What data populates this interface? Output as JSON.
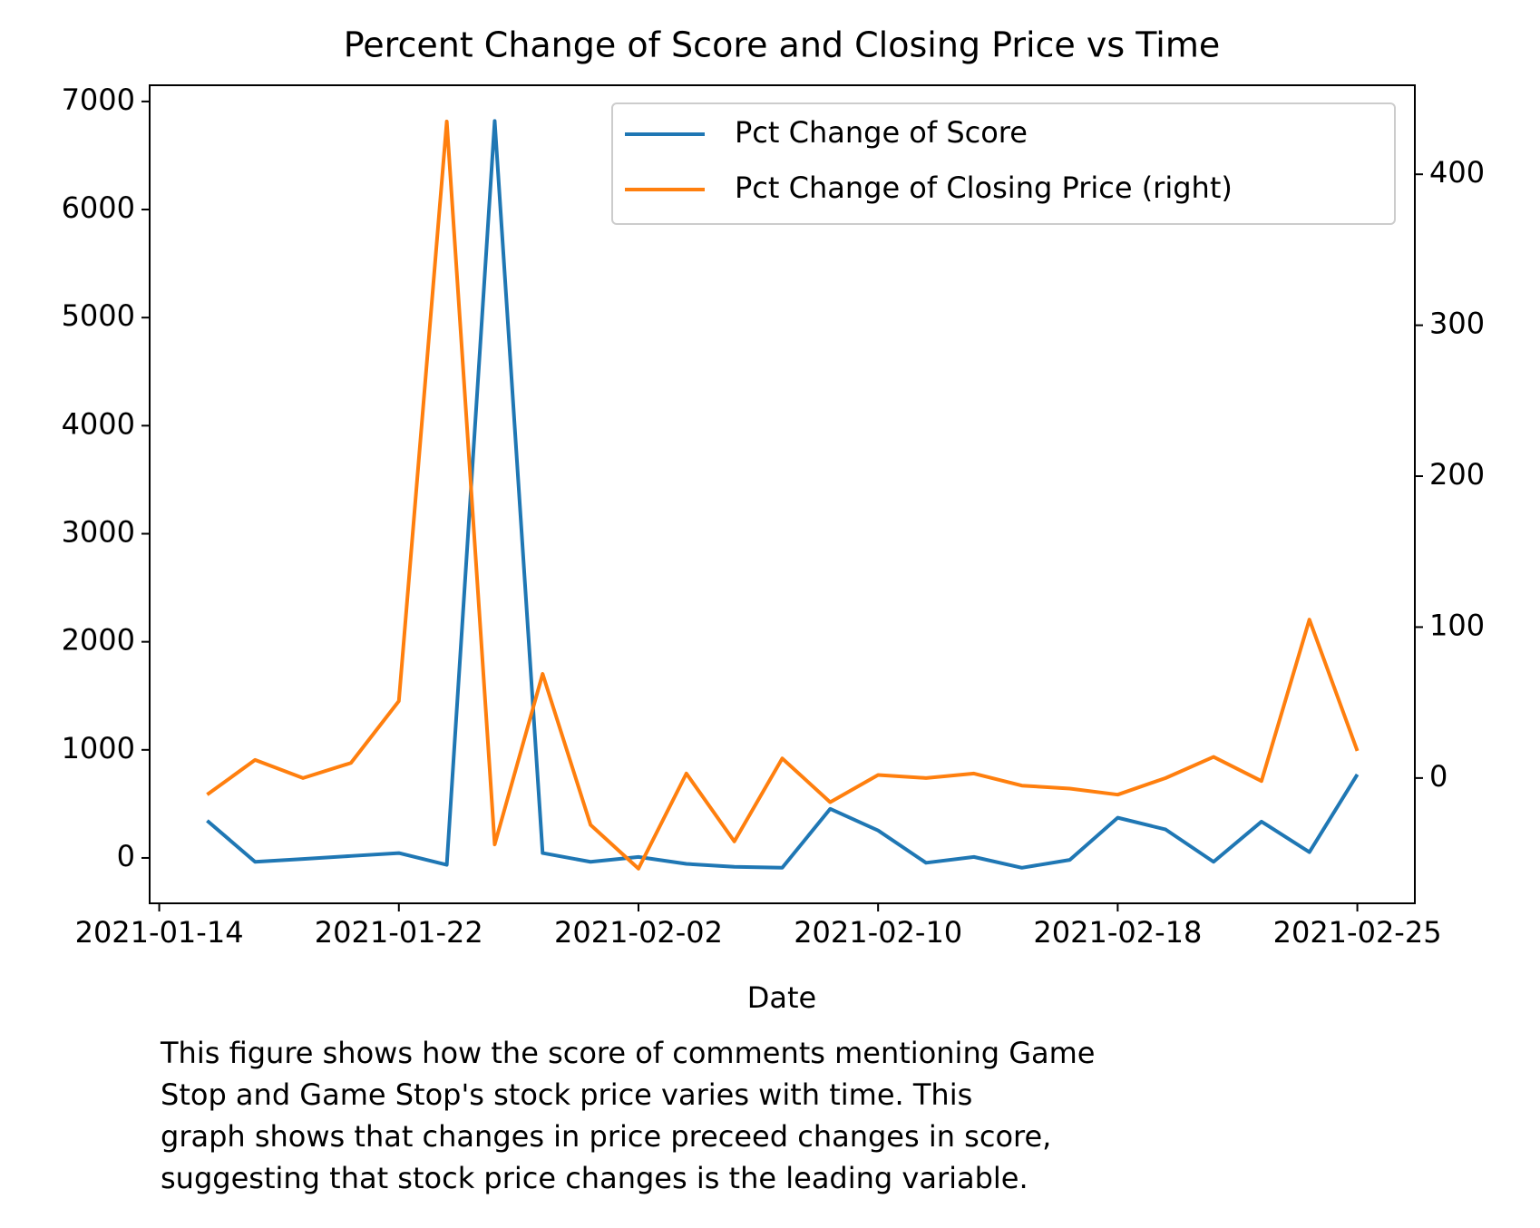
{
  "chart_data": {
    "type": "line",
    "title": "Percent Change of Score and Closing Price vs Time",
    "xlabel": "Date",
    "x": [
      1,
      2,
      3,
      4,
      5,
      6,
      7,
      8,
      9,
      10,
      11,
      12,
      13,
      14,
      15,
      16,
      17,
      18,
      19,
      20,
      21,
      22,
      23,
      24,
      25
    ],
    "xlim": [
      -0.2,
      26.2
    ],
    "xticks": [
      {
        "value": 0,
        "label": "2021-01-14"
      },
      {
        "value": 5,
        "label": "2021-01-22"
      },
      {
        "value": 10,
        "label": "2021-02-02"
      },
      {
        "value": 15,
        "label": "2021-02-10"
      },
      {
        "value": 20,
        "label": "2021-02-18"
      },
      {
        "value": 25,
        "label": "2021-02-25"
      }
    ],
    "ylim": [
      -420,
      7150
    ],
    "yticks": [
      0,
      1000,
      2000,
      3000,
      4000,
      5000,
      6000,
      7000
    ],
    "y2lim": [
      -83,
      459
    ],
    "y2ticks": [
      0,
      100,
      200,
      300,
      400
    ],
    "legend": "upper right",
    "series": [
      {
        "name": "Pct Change of Score",
        "color": "#1f77b4",
        "values": [
          345,
          -36,
          -10,
          18,
          45,
          -64,
          6820,
          45,
          -36,
          9,
          -55,
          -82,
          -91,
          454,
          254,
          -45,
          9,
          -91,
          -18,
          372,
          263,
          -36,
          336,
          54,
          772
        ]
      },
      {
        "name": "Pct Change of Closing Price (right)",
        "color": "#ff7f0e",
        "axis": "y2",
        "values": [
          -11,
          12,
          0,
          10,
          51,
          435,
          -44,
          69,
          -31,
          -60,
          3,
          -42,
          13,
          -16,
          2,
          0,
          3,
          -5,
          -7,
          -11,
          0,
          14,
          -2,
          105,
          18
        ]
      }
    ],
    "caption": [
      "This figure shows how the score of comments mentioning Game",
      "Stop and Game Stop's stock price varies with time. This",
      "graph shows that changes in price preceed changes in score,",
      "suggesting that stock price changes is the leading variable."
    ]
  }
}
